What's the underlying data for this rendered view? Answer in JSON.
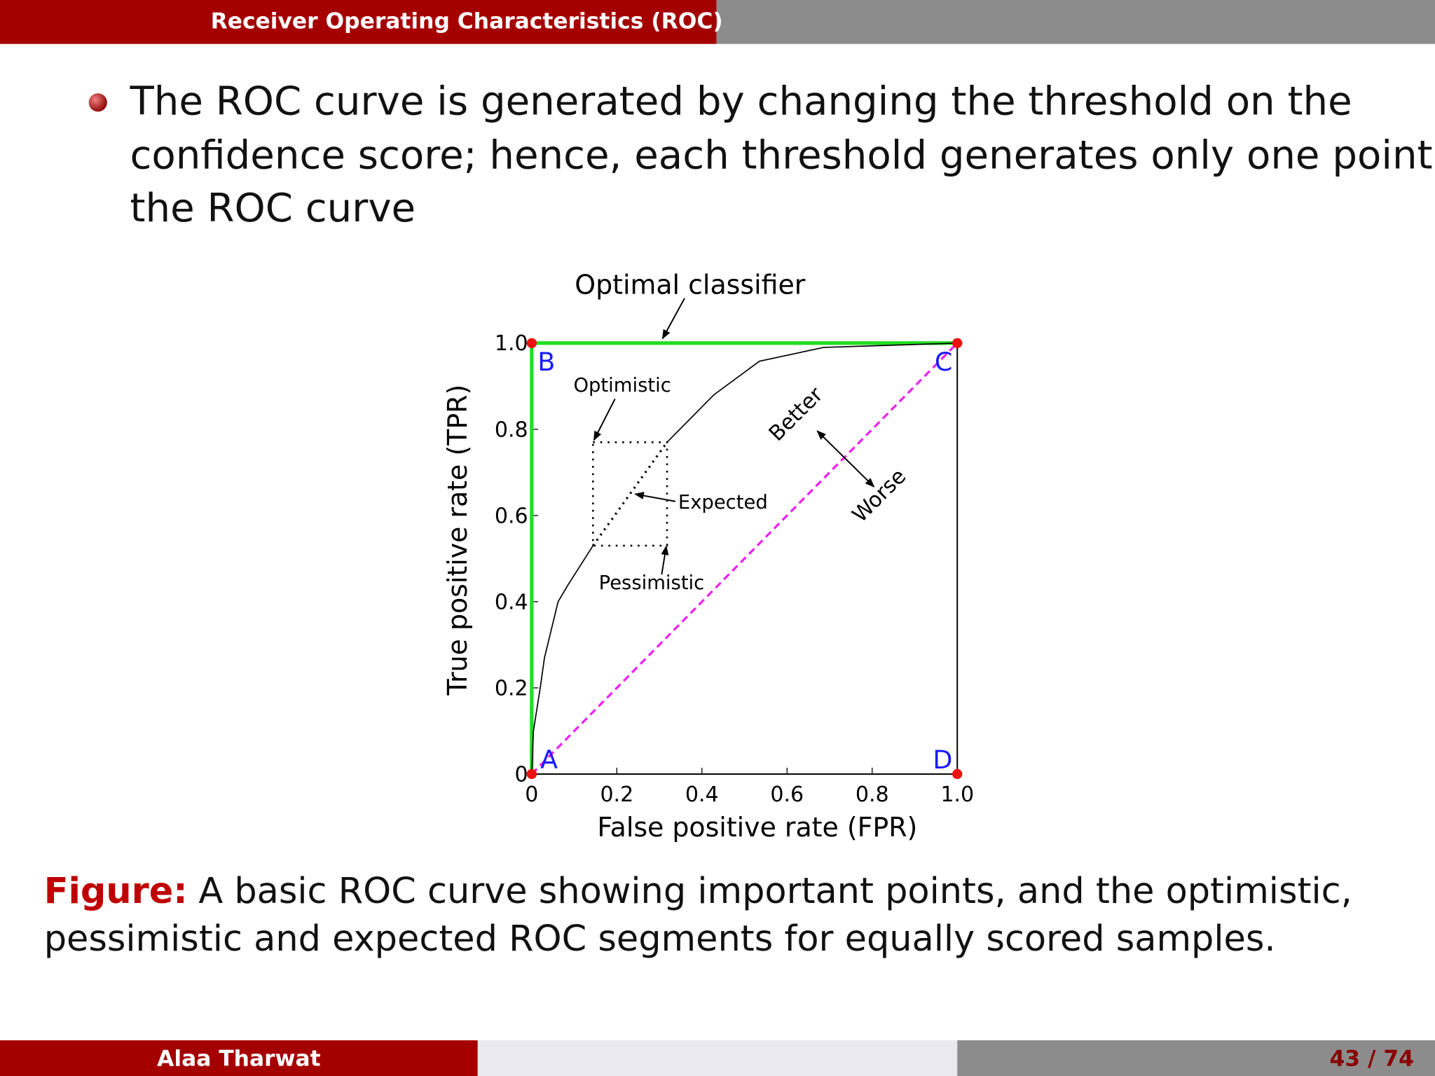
{
  "header": {
    "title": "Receiver Operating Characteristics (ROC)"
  },
  "bullet": {
    "lines": [
      "The ROC curve is generated by changing the threshold on the",
      "confidence score; hence, each threshold generates only one point in",
      "the ROC curve"
    ]
  },
  "chart_data": {
    "type": "line",
    "x_label": "False positive rate (FPR)",
    "y_label": "True positive rate (TPR)",
    "xlim": [
      0,
      1
    ],
    "ylim": [
      0,
      1
    ],
    "xticks": [
      0,
      0.2,
      0.4,
      0.6,
      0.8,
      {
        "value": 1,
        "label": "1.0"
      }
    ],
    "yticks": [
      0,
      0.2,
      0.4,
      0.6,
      0.8,
      {
        "value": 1,
        "label": "1.0"
      }
    ],
    "series": [
      {
        "color": "#22dd22",
        "style": "solid",
        "x": [
          0,
          0,
          1
        ],
        "y": [
          0,
          1,
          1
        ]
      },
      {
        "color": "#ee22ee",
        "style": "dashed",
        "x": [
          0,
          1
        ],
        "y": [
          0,
          1
        ]
      },
      {
        "color": "#000000",
        "style": "thin",
        "x": [
          0,
          0.004,
          0.02,
          0.03,
          0.062,
          0.084,
          0.144
        ],
        "y": [
          0,
          0.1,
          0.2,
          0.27,
          0.4,
          0.437,
          0.53
        ]
      },
      {
        "color": "#000000",
        "style": "dotted",
        "x": [
          0.144,
          0.318
        ],
        "y": [
          0.53,
          0.77
        ]
      },
      {
        "color": "#000000",
        "style": "thin",
        "x": [
          0.318,
          0.428,
          0.535,
          0.686,
          1
        ],
        "y": [
          0.77,
          0.88,
          0.958,
          0.99,
          1
        ]
      }
    ],
    "points": {
      "color": "#ee1111",
      "label_color": "#1a1aff",
      "labels": [
        "A",
        "B",
        "C",
        "D"
      ],
      "x": [
        0,
        0,
        1,
        1
      ],
      "y": [
        0,
        1,
        1,
        0
      ]
    },
    "annotations": [
      "Optimal classifier",
      "Optimistic",
      "Expected",
      "Pessimistic",
      "Better",
      "Worse"
    ]
  },
  "caption": {
    "label": "Figure:",
    "lines": [
      "A basic ROC curve showing important points, and the optimistic,",
      "pessimistic and expected ROC segments for equally scored samples."
    ]
  },
  "footer": {
    "author": "Alaa Tharwat",
    "page": "43 / 74"
  }
}
